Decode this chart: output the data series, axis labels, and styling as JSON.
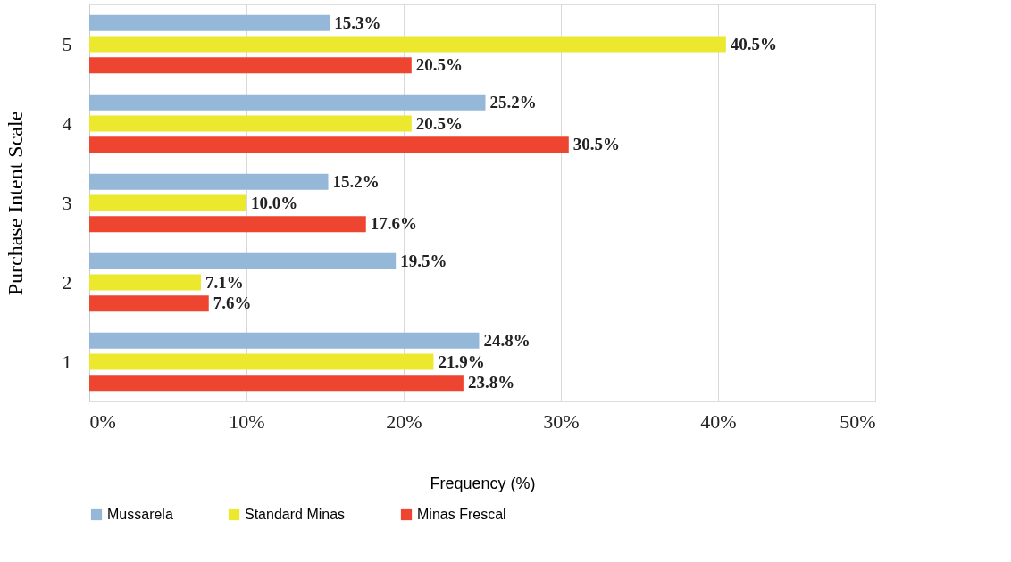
{
  "chart_data": {
    "type": "bar",
    "orientation": "horizontal",
    "ylabel": "Purchase Intent Scale",
    "xlabel": "Frequency (%)",
    "categories": [
      "5",
      "4",
      "3",
      "2",
      "1"
    ],
    "series": [
      {
        "name": "Mussarela",
        "color": "#95b8d9",
        "values": [
          15.3,
          25.2,
          15.2,
          19.5,
          24.8
        ],
        "value_labels": [
          "15.3%",
          "25.2%",
          "15.2%",
          "19.5%",
          "24.8%"
        ]
      },
      {
        "name": "Standard Minas",
        "color": "#ece82e",
        "values": [
          40.5,
          20.5,
          10.0,
          7.1,
          21.9
        ],
        "value_labels": [
          "40.5%",
          "20.5%",
          "10.0%",
          "7.1%",
          "21.9%"
        ]
      },
      {
        "name": "Minas Frescal",
        "color": "#ee4530",
        "values": [
          20.5,
          30.5,
          17.6,
          7.6,
          23.8
        ],
        "value_labels": [
          "20.5%",
          "30.5%",
          "17.6%",
          "7.6%",
          "23.8%"
        ]
      }
    ],
    "xlim": [
      0,
      50
    ],
    "xticks": [
      {
        "value": 0,
        "label": "0%"
      },
      {
        "value": 10,
        "label": "10%"
      },
      {
        "value": 20,
        "label": "20%"
      },
      {
        "value": 30,
        "label": "30%"
      },
      {
        "value": 40,
        "label": "40%"
      },
      {
        "value": 50,
        "label": "50%"
      }
    ],
    "grid": "x",
    "legend": "bottom"
  }
}
